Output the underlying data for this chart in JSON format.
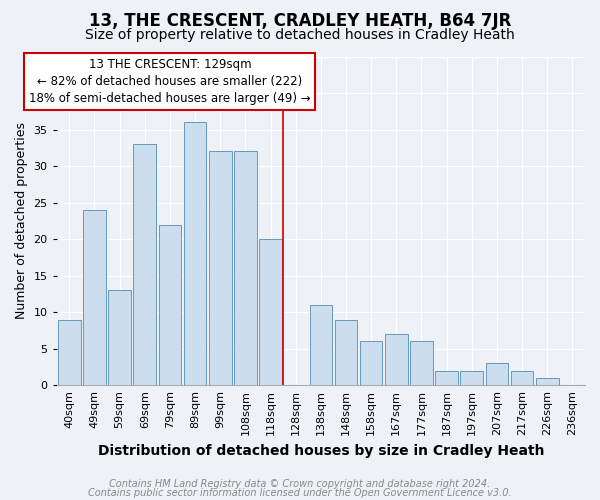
{
  "title": "13, THE CRESCENT, CRADLEY HEATH, B64 7JR",
  "subtitle": "Size of property relative to detached houses in Cradley Heath",
  "xlabel": "Distribution of detached houses by size in Cradley Heath",
  "ylabel": "Number of detached properties",
  "bar_labels": [
    "40sqm",
    "49sqm",
    "59sqm",
    "69sqm",
    "79sqm",
    "89sqm",
    "99sqm",
    "108sqm",
    "118sqm",
    "128sqm",
    "138sqm",
    "148sqm",
    "158sqm",
    "167sqm",
    "177sqm",
    "187sqm",
    "197sqm",
    "207sqm",
    "217sqm",
    "226sqm",
    "236sqm"
  ],
  "bar_heights": [
    9,
    24,
    13,
    33,
    22,
    36,
    32,
    32,
    20,
    0,
    11,
    9,
    6,
    7,
    6,
    2,
    2,
    3,
    2,
    1,
    0
  ],
  "bar_color": "#ccdded",
  "bar_edge_color": "#6699bb",
  "highlight_index": 9,
  "highlight_line_color": "#cc0000",
  "ylim": [
    0,
    45
  ],
  "yticks": [
    0,
    5,
    10,
    15,
    20,
    25,
    30,
    35,
    40,
    45
  ],
  "annotation_title": "13 THE CRESCENT: 129sqm",
  "annotation_line1": "← 82% of detached houses are smaller (222)",
  "annotation_line2": "18% of semi-detached houses are larger (49) →",
  "annotation_box_facecolor": "#ffffff",
  "annotation_box_edgecolor": "#cc0000",
  "footer_line1": "Contains HM Land Registry data © Crown copyright and database right 2024.",
  "footer_line2": "Contains public sector information licensed under the Open Government Licence v3.0.",
  "bg_color": "#eef2f7",
  "plot_bg_color": "#eef2f7",
  "title_fontsize": 12,
  "subtitle_fontsize": 10,
  "xlabel_fontsize": 10,
  "ylabel_fontsize": 9,
  "tick_fontsize": 8,
  "footer_fontsize": 7,
  "annotation_fontsize": 8.5
}
